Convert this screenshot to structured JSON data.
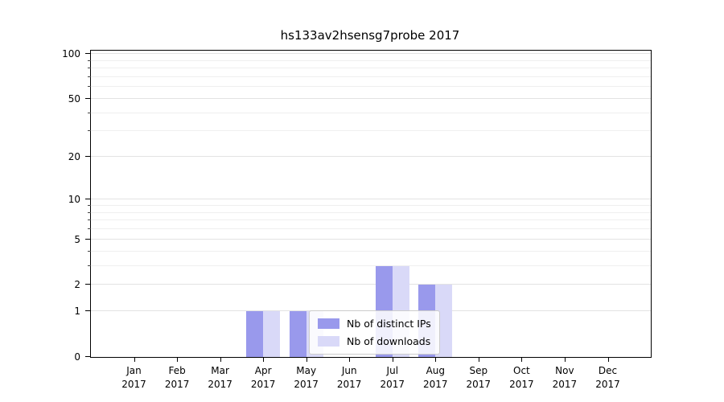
{
  "chart_data": {
    "type": "bar",
    "title": "hs133av2hsensg7probe 2017",
    "categories": [
      "Jan",
      "Feb",
      "Mar",
      "Apr",
      "May",
      "Jun",
      "Jul",
      "Aug",
      "Sep",
      "Oct",
      "Nov",
      "Dec"
    ],
    "category_year": "2017",
    "series": [
      {
        "name": "Nb of distinct IPs",
        "color": "#9999ec",
        "values": [
          0,
          0,
          0,
          1,
          1,
          0,
          3,
          2,
          0,
          0,
          0,
          0
        ]
      },
      {
        "name": "Nb of downloads",
        "color": "#d9d9f8",
        "values": [
          0,
          0,
          0,
          1,
          1,
          0,
          3,
          2,
          0,
          0,
          0,
          0
        ]
      }
    ],
    "y_axis": {
      "scale": "log(1+x)",
      "min": 0,
      "max": 105,
      "ticks": [
        0,
        1,
        2,
        5,
        10,
        20,
        50,
        100
      ],
      "minor_ticks": [
        3,
        4,
        6,
        7,
        8,
        9,
        30,
        40,
        60,
        70,
        80,
        90
      ]
    },
    "x_axis": {
      "tick_line1": [
        "Jan",
        "Feb",
        "Mar",
        "Apr",
        "May",
        "Jun",
        "Jul",
        "Aug",
        "Sep",
        "Oct",
        "Nov",
        "Dec"
      ],
      "tick_line2": "2017"
    },
    "legend": {
      "position": "lower center",
      "entries": [
        "Nb of distinct IPs",
        "Nb of downloads"
      ]
    },
    "grid": true
  }
}
